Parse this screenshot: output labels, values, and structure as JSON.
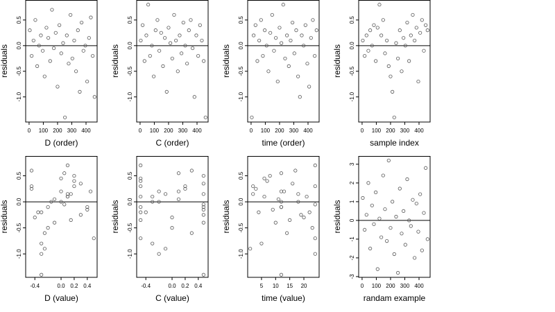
{
  "chart_data": [
    {
      "type": "scatter",
      "xlabel": "D (order)",
      "ylabel": "residuals",
      "color": "#555555",
      "hline": 0,
      "xlim": [
        -24,
        478
      ],
      "ylim": [
        -1.49,
        0.89
      ],
      "xticks": [
        0,
        100,
        200,
        300,
        400
      ],
      "yticks": [
        {
          "value": -1,
          "label": "-1.0"
        },
        {
          "value": -0.5,
          "label": "-0.5"
        },
        {
          "value": 0,
          "label": "0.0"
        },
        {
          "value": 0.5,
          "label": "0.5"
        }
      ],
      "x": [
        5,
        18,
        31,
        44,
        57,
        70,
        83,
        96,
        109,
        122,
        135,
        148,
        161,
        174,
        187,
        200,
        213,
        226,
        239,
        252,
        265,
        278,
        291,
        304,
        317,
        330,
        343,
        356,
        369,
        382,
        395,
        408,
        421,
        434,
        447,
        460
      ],
      "values": [
        0.3,
        -0.2,
        0.1,
        0.5,
        -0.4,
        0.0,
        0.2,
        -0.1,
        -0.6,
        0.35,
        0.15,
        -0.3,
        0.7,
        -0.05,
        0.25,
        -0.8,
        0.4,
        -0.15,
        0.05,
        -1.4,
        0.2,
        -0.35,
        0.6,
        -0.25,
        0.1,
        -0.5,
        0.3,
        -0.9,
        0.45,
        -0.1,
        0.0,
        -0.7,
        0.15,
        0.55,
        -0.2,
        -1.0
      ]
    },
    {
      "type": "scatter",
      "xlabel": "C (order)",
      "ylabel": "residuals",
      "color": "#555555",
      "hline": 0,
      "xlim": [
        -24,
        478
      ],
      "ylim": [
        -1.49,
        0.89
      ],
      "xticks": [
        0,
        100,
        200,
        300,
        400
      ],
      "yticks": [
        {
          "value": -1,
          "label": "-1.0"
        },
        {
          "value": -0.5,
          "label": "-0.5"
        },
        {
          "value": 0,
          "label": "0.0"
        },
        {
          "value": 0.5,
          "label": "0.5"
        }
      ],
      "x": [
        5,
        18,
        31,
        44,
        57,
        70,
        83,
        96,
        109,
        122,
        135,
        148,
        161,
        174,
        187,
        200,
        213,
        226,
        239,
        252,
        265,
        278,
        291,
        304,
        317,
        330,
        343,
        356,
        369,
        382,
        395,
        408,
        421,
        434,
        447,
        460
      ],
      "values": [
        0.1,
        0.4,
        -0.3,
        0.2,
        0.8,
        -0.2,
        0.0,
        -0.6,
        0.3,
        0.5,
        -0.1,
        0.25,
        -0.4,
        0.15,
        -0.9,
        0.35,
        0.05,
        -0.25,
        0.6,
        0.1,
        -0.5,
        0.2,
        -0.15,
        0.45,
        0.0,
        -0.35,
        0.3,
        0.5,
        -0.05,
        -1.0,
        0.2,
        -0.2,
        0.4,
        0.1,
        -0.3,
        -1.4
      ]
    },
    {
      "type": "scatter",
      "xlabel": "time (order)",
      "ylabel": "residuals",
      "color": "#555555",
      "hline": 0,
      "xlim": [
        -24,
        478
      ],
      "ylim": [
        -1.49,
        0.89
      ],
      "xticks": [
        0,
        100,
        200,
        300,
        400
      ],
      "yticks": [
        {
          "value": -1,
          "label": "-1.0"
        },
        {
          "value": -0.5,
          "label": "-0.5"
        },
        {
          "value": 0,
          "label": "0.0"
        },
        {
          "value": 0.5,
          "label": "0.5"
        }
      ],
      "x": [
        5,
        18,
        31,
        44,
        57,
        70,
        83,
        96,
        109,
        122,
        135,
        148,
        161,
        174,
        187,
        200,
        213,
        226,
        239,
        252,
        265,
        278,
        291,
        304,
        317,
        330,
        343,
        356,
        369,
        382,
        395,
        408,
        421,
        434,
        447,
        460
      ],
      "values": [
        -1.4,
        0.2,
        0.4,
        -0.3,
        0.1,
        0.5,
        -0.2,
        0.3,
        0.0,
        -0.5,
        0.25,
        0.6,
        -0.1,
        0.15,
        -0.7,
        0.35,
        0.05,
        0.8,
        -0.25,
        0.2,
        -0.4,
        0.1,
        0.45,
        -0.15,
        0.3,
        -0.6,
        -1.0,
        0.2,
        0.0,
        0.4,
        -0.35,
        -0.8,
        0.15,
        0.5,
        -0.2,
        0.3
      ]
    },
    {
      "type": "scatter",
      "xlabel": "sample index",
      "ylabel": "residuals",
      "color": "#555555",
      "hline": 0,
      "xlim": [
        -24,
        478
      ],
      "ylim": [
        -1.49,
        0.89
      ],
      "xticks": [
        0,
        100,
        200,
        300,
        400
      ],
      "yticks": [
        {
          "value": -1,
          "label": "-1.0"
        },
        {
          "value": -0.5,
          "label": "-0.5"
        },
        {
          "value": 0,
          "label": "0.0"
        },
        {
          "value": 0.5,
          "label": "0.5"
        }
      ],
      "x": [
        5,
        18,
        31,
        44,
        57,
        70,
        83,
        96,
        109,
        122,
        135,
        148,
        161,
        174,
        187,
        200,
        213,
        226,
        239,
        252,
        265,
        278,
        291,
        304,
        317,
        330,
        343,
        356,
        369,
        382,
        395,
        408,
        421,
        434,
        447,
        460
      ],
      "values": [
        0.1,
        -0.2,
        0.2,
        -0.1,
        0.3,
        0.0,
        0.4,
        -0.3,
        0.35,
        0.8,
        0.2,
        0.5,
        -0.15,
        0.1,
        -0.4,
        -0.6,
        -0.9,
        -1.4,
        0.05,
        -0.25,
        0.3,
        -0.5,
        0.15,
        0.0,
        0.45,
        -0.3,
        0.2,
        0.6,
        0.1,
        0.35,
        -0.7,
        0.25,
        0.5,
        -0.1,
        0.4,
        0.3
      ]
    },
    {
      "type": "scatter",
      "xlabel": "D (value)",
      "ylabel": "residuals",
      "color": "#555555",
      "hline": 0,
      "xlim": [
        -0.54,
        0.55
      ],
      "ylim": [
        -1.45,
        0.88
      ],
      "xticks": [
        {
          "value": -0.4,
          "label": "-0.4"
        },
        {
          "value": 0,
          "label": "0.0"
        },
        {
          "value": 0.2,
          "label": "0.2"
        },
        {
          "value": 0.4,
          "label": "0.4"
        }
      ],
      "yticks": [
        {
          "value": -1,
          "label": "-1.0"
        },
        {
          "value": -0.5,
          "label": "-0.5"
        },
        {
          "value": 0,
          "label": "0.0"
        },
        {
          "value": 0.5,
          "label": "0.5"
        }
      ],
      "x": [
        -0.45,
        -0.3,
        0.1,
        0.2,
        -0.1,
        0.0,
        0.45,
        -0.2,
        -0.25,
        0.3,
        0.15,
        -0.4,
        0.1,
        0.05,
        -0.45,
        -0.3,
        0.2,
        0.4,
        -0.1,
        -0.3,
        0.0,
        0.15,
        -0.45,
        0.3,
        0.1,
        -0.2,
        0.2,
        -0.25,
        0.0,
        0.4,
        -0.15,
        0.5,
        0.1,
        0.05,
        -0.35,
        -0.3
      ],
      "values": [
        0.3,
        -0.2,
        0.1,
        0.5,
        -0.4,
        0.0,
        0.2,
        -0.1,
        -0.6,
        0.35,
        0.15,
        -0.3,
        0.7,
        -0.05,
        0.25,
        -0.8,
        0.4,
        -0.15,
        0.05,
        -1.4,
        0.2,
        -0.35,
        0.6,
        -0.25,
        0.1,
        -0.5,
        0.3,
        -0.9,
        0.45,
        -0.1,
        0.0,
        -0.7,
        0.15,
        0.55,
        -0.2,
        -1.0
      ]
    },
    {
      "type": "scatter",
      "xlabel": "C (value)",
      "ylabel": "residuals",
      "color": "#555555",
      "hline": 0,
      "xlim": [
        -0.54,
        0.55
      ],
      "ylim": [
        -1.45,
        0.88
      ],
      "xticks": [
        {
          "value": -0.4,
          "label": "-0.4"
        },
        {
          "value": 0,
          "label": "0.0"
        },
        {
          "value": 0.2,
          "label": "0.2"
        },
        {
          "value": 0.4,
          "label": "0.4"
        }
      ],
      "yticks": [
        {
          "value": -1,
          "label": "-1.0"
        },
        {
          "value": -0.5,
          "label": "-0.5"
        },
        {
          "value": 0,
          "label": "0.0"
        },
        {
          "value": 0.5,
          "label": "0.5"
        }
      ],
      "x": [
        -0.48,
        -0.48,
        -0.3,
        0.48,
        0.48,
        -0.2,
        0.1,
        -0.48,
        0.3,
        0.48,
        -0.1,
        0.0,
        -0.48,
        0.48,
        0.2,
        -0.3,
        -0.48,
        0.48,
        0.1,
        0.48,
        -0.2,
        -0.48,
        0.3,
        0.48,
        -0.48,
        0.0,
        0.2,
        -0.1,
        -0.48,
        0.48,
        -0.3,
        -0.48,
        0.48,
        0.1,
        -0.4,
        -0.2
      ],
      "values": [
        0.3,
        -0.2,
        0.1,
        0.5,
        -0.4,
        0.0,
        0.2,
        -0.1,
        -0.6,
        0.35,
        0.15,
        -0.3,
        0.7,
        -0.05,
        0.25,
        -0.8,
        0.4,
        -0.15,
        0.05,
        -1.4,
        0.2,
        -0.35,
        0.6,
        -0.25,
        0.1,
        -0.5,
        0.3,
        -0.9,
        0.45,
        -0.1,
        0.0,
        -0.7,
        0.15,
        0.55,
        -0.2,
        -1.0
      ]
    },
    {
      "type": "scatter",
      "xlabel": "time (value)",
      "ylabel": "residuals",
      "color": "#555555",
      "hline": 0,
      "xlim": [
        0.1,
        25.4
      ],
      "ylim": [
        -1.45,
        0.88
      ],
      "xticks": [
        5,
        10,
        15,
        20
      ],
      "yticks": [
        {
          "value": -1,
          "label": "-1.0"
        },
        {
          "value": -0.5,
          "label": "-0.5"
        },
        {
          "value": 0,
          "label": "0.0"
        },
        {
          "value": 0.5,
          "label": "0.5"
        }
      ],
      "x": [
        2,
        4,
        6,
        8,
        10,
        12,
        12,
        12,
        14,
        16,
        18,
        20,
        24,
        24,
        3,
        5,
        7,
        9,
        11,
        12,
        13,
        15,
        17,
        19,
        21,
        23,
        24,
        1,
        6,
        12,
        18,
        24,
        2,
        12,
        22,
        24
      ],
      "values": [
        0.3,
        -0.2,
        0.1,
        0.5,
        -0.4,
        0.0,
        0.2,
        -0.1,
        -0.6,
        0.35,
        0.15,
        -0.3,
        0.7,
        -0.05,
        0.25,
        -0.8,
        0.4,
        -0.15,
        0.05,
        -1.4,
        0.2,
        -0.35,
        0.6,
        -0.25,
        0.1,
        -0.5,
        0.3,
        -0.9,
        0.45,
        -0.1,
        0.0,
        -0.7,
        0.15,
        0.55,
        -0.2,
        -1.0
      ]
    },
    {
      "type": "scatter",
      "xlabel": "randam example",
      "ylabel": "residuals",
      "color": "#555555",
      "hline": 0,
      "xlim": [
        -24,
        478
      ],
      "ylim": [
        -3.04,
        3.44
      ],
      "xticks": [
        0,
        100,
        200,
        300,
        400
      ],
      "yticks": [
        -3,
        -2,
        -1,
        0,
        1,
        2,
        3
      ],
      "x": [
        5,
        18,
        31,
        44,
        57,
        70,
        83,
        96,
        109,
        122,
        135,
        148,
        161,
        174,
        187,
        200,
        213,
        226,
        239,
        252,
        265,
        278,
        291,
        304,
        317,
        330,
        343,
        356,
        369,
        382,
        395,
        408,
        421,
        434,
        447,
        460
      ],
      "values": [
        1.2,
        -0.5,
        0.3,
        2.0,
        -1.5,
        0.8,
        -0.2,
        1.5,
        -2.6,
        0.1,
        -0.9,
        2.4,
        0.6,
        -1.1,
        3.2,
        -0.4,
        1.0,
        -1.8,
        0.2,
        -2.8,
        1.7,
        -0.7,
        0.5,
        -1.3,
        2.2,
        0.0,
        -0.3,
        1.1,
        -2.0,
        0.9,
        -0.6,
        1.4,
        -1.6,
        0.4,
        2.8,
        -1.0
      ]
    }
  ]
}
